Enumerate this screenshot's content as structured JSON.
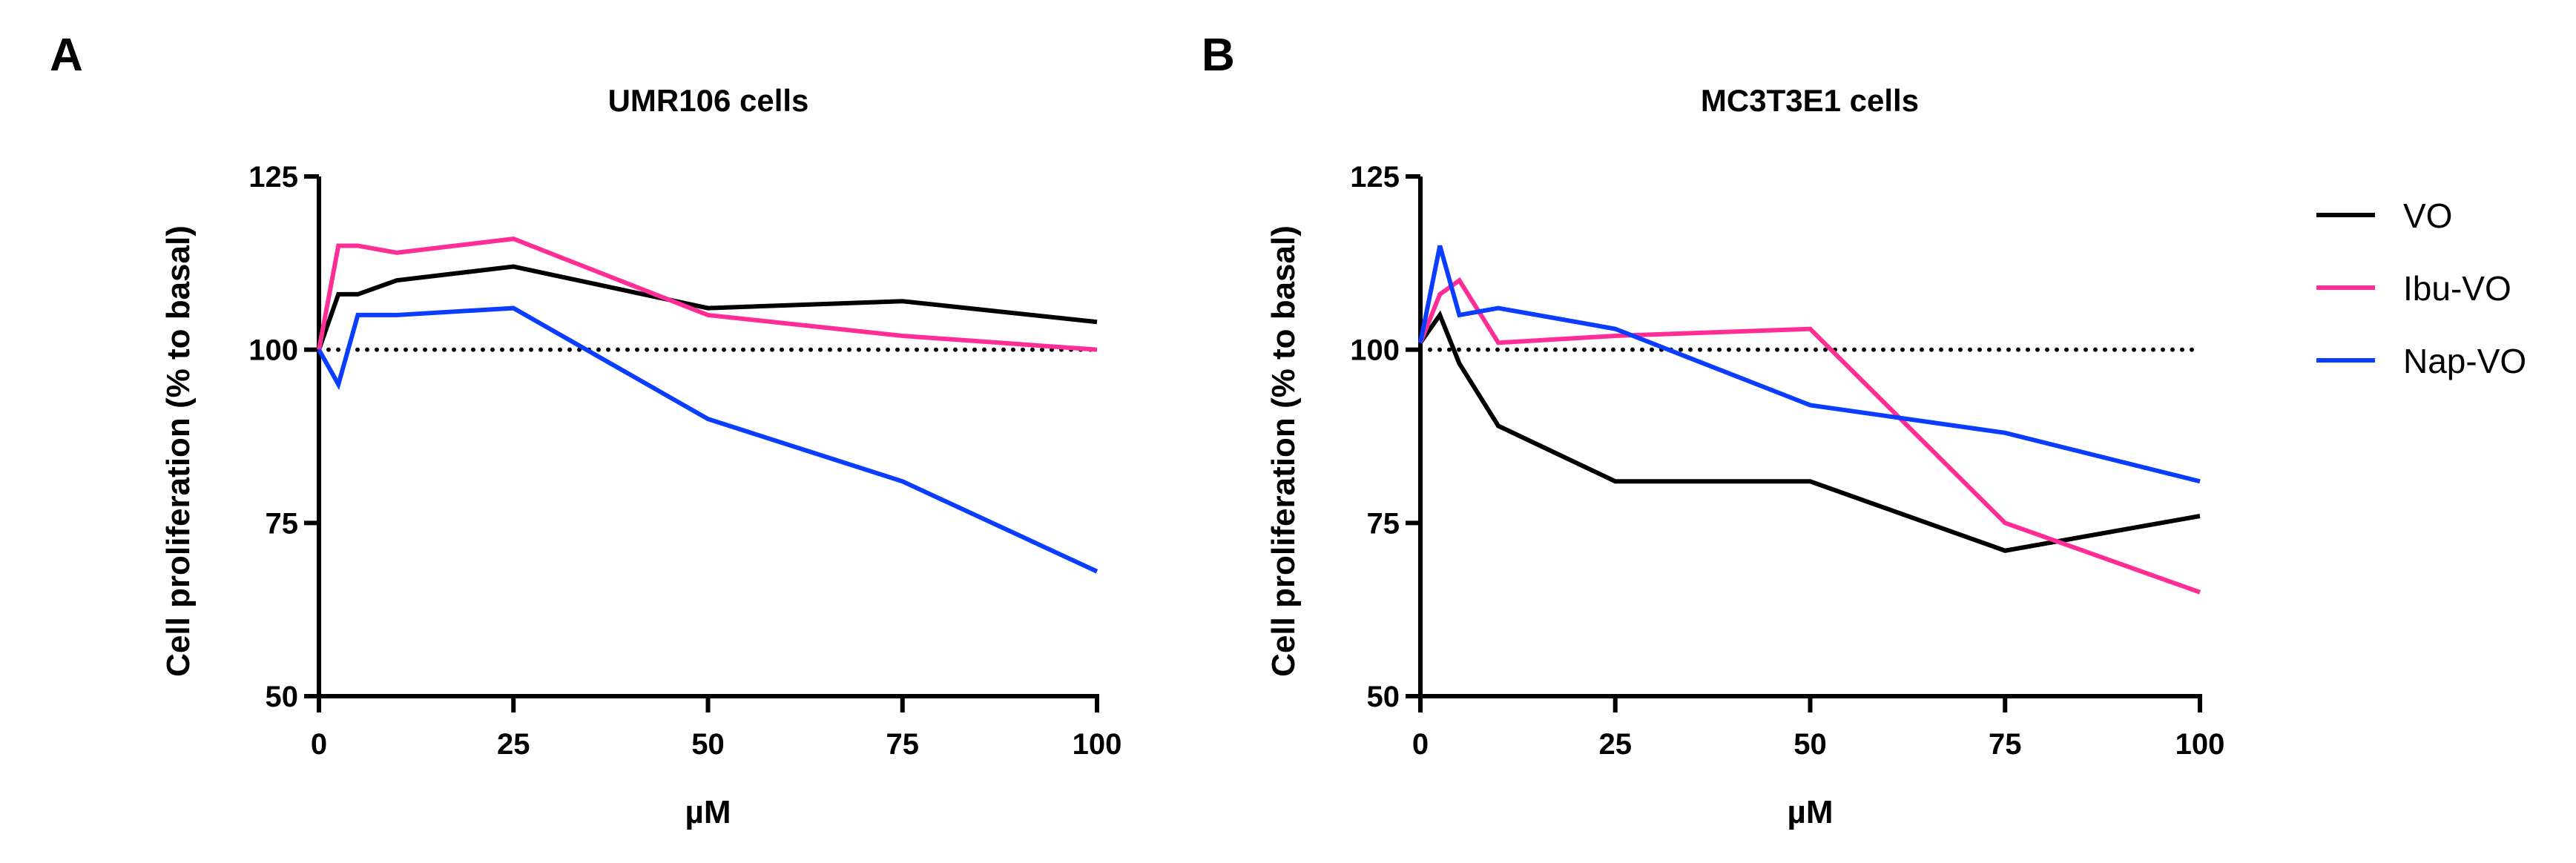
{
  "chart_data": [
    {
      "panel_label": "A",
      "type": "line",
      "title": "UMR106 cells",
      "xlabel": "µM",
      "ylabel": "Cell proliferation (% to basal)",
      "xlim": [
        0,
        100
      ],
      "ylim": [
        50,
        125
      ],
      "xticks": [
        "0",
        "25",
        "50",
        "75",
        "100"
      ],
      "yticks": [
        "50",
        "75",
        "100",
        "125"
      ],
      "reference_line": 100,
      "x": [
        0,
        2.5,
        5,
        10,
        25,
        50,
        75,
        100
      ],
      "series": [
        {
          "name": "VO",
          "color": "#000000",
          "values": [
            100,
            108,
            108,
            110,
            112,
            106,
            107,
            104
          ]
        },
        {
          "name": "Ibu-VO",
          "color": "#ff2d95",
          "values": [
            100,
            115,
            115,
            114,
            116,
            105,
            102,
            100
          ]
        },
        {
          "name": "Nap-VO",
          "color": "#0a3dff",
          "values": [
            100,
            95,
            105,
            105,
            106,
            90,
            81,
            68
          ]
        }
      ]
    },
    {
      "panel_label": "B",
      "type": "line",
      "title": "MC3T3E1 cells",
      "xlabel": "µM",
      "ylabel": "Cell proliferation (% to basal)",
      "xlim": [
        0,
        100
      ],
      "ylim": [
        50,
        125
      ],
      "xticks": [
        "0",
        "25",
        "50",
        "75",
        "100"
      ],
      "yticks": [
        "50",
        "75",
        "100",
        "125"
      ],
      "reference_line": 100,
      "x": [
        0,
        2.5,
        5,
        10,
        25,
        50,
        75,
        100
      ],
      "series": [
        {
          "name": "VO",
          "color": "#000000",
          "values": [
            101,
            105,
            98,
            89,
            81,
            81,
            71,
            76
          ]
        },
        {
          "name": "Ibu-VO",
          "color": "#ff2d95",
          "values": [
            101,
            108,
            110,
            101,
            102,
            103,
            75,
            65
          ]
        },
        {
          "name": "Nap-VO",
          "color": "#0a3dff",
          "values": [
            101,
            115,
            105,
            106,
            103,
            92,
            88,
            81
          ]
        }
      ]
    }
  ],
  "legend": {
    "placement": "right",
    "items": [
      {
        "label": "VO",
        "color": "#000000"
      },
      {
        "label": "Ibu-VO",
        "color": "#ff2d95"
      },
      {
        "label": "Nap-VO",
        "color": "#0a3dff"
      }
    ]
  }
}
